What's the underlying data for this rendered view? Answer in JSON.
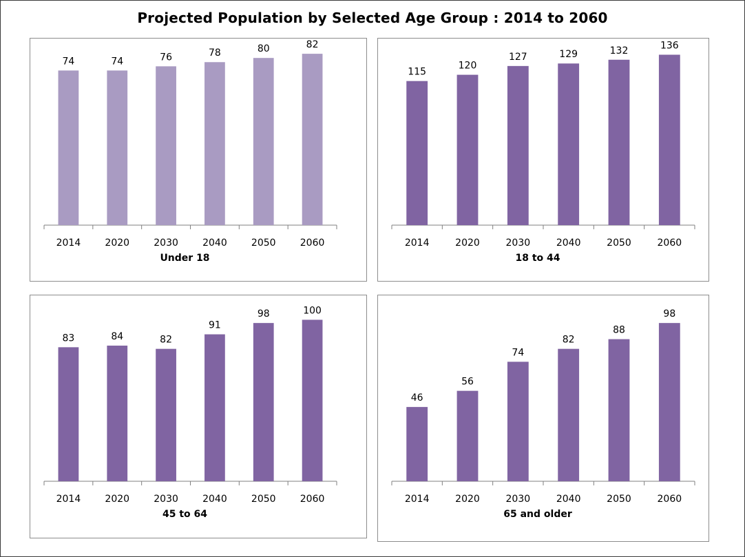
{
  "title": "Projected Population by Selected Age Group : 2014 to 2060",
  "colors": {
    "light_purple": "#a99bc2",
    "purple": "#8064a2",
    "axis": "#7f7f7f"
  },
  "chart_data": [
    {
      "type": "bar",
      "title": "Under 18",
      "categories": [
        "2014",
        "2020",
        "2030",
        "2040",
        "2050",
        "2060"
      ],
      "values": [
        74,
        74,
        76,
        78,
        80,
        82
      ],
      "ylim": [
        0,
        85
      ],
      "color": "#a99bc2",
      "grid": false
    },
    {
      "type": "bar",
      "title": "18 to 44",
      "categories": [
        "2014",
        "2020",
        "2030",
        "2040",
        "2050",
        "2060"
      ],
      "values": [
        115,
        120,
        127,
        129,
        132,
        136
      ],
      "ylim": [
        0,
        150
      ],
      "color": "#8064a2",
      "grid": false
    },
    {
      "type": "bar",
      "title": "45 to 64",
      "categories": [
        "2014",
        "2020",
        "2030",
        "2040",
        "2050",
        "2060"
      ],
      "values": [
        83,
        84,
        82,
        91,
        98,
        100
      ],
      "ylim": [
        0,
        110
      ],
      "color": "#8064a2",
      "grid": false
    },
    {
      "type": "bar",
      "title": "65 and older",
      "categories": [
        "2014",
        "2020",
        "2030",
        "2040",
        "2050",
        "2060"
      ],
      "values": [
        46,
        56,
        74,
        82,
        88,
        98
      ],
      "ylim": [
        0,
        110
      ],
      "color": "#8064a2",
      "grid": false
    }
  ]
}
